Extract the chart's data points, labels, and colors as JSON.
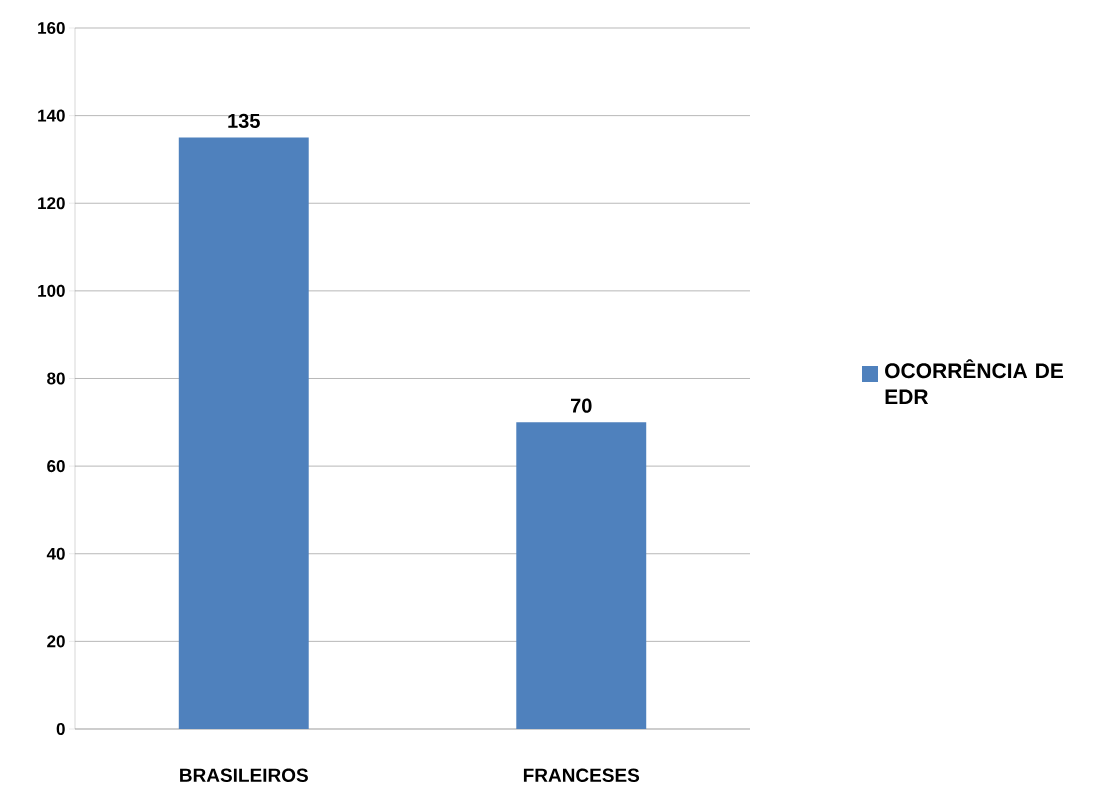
{
  "chart_data": {
    "type": "bar",
    "categories": [
      "BRASILEIROS",
      "FRANCESES"
    ],
    "series": [
      {
        "name": "OCORRÊNCIA DE EDR",
        "color": "#4f81bd",
        "values": [
          135,
          70
        ]
      }
    ],
    "ylim": [
      0,
      160
    ],
    "yticks": [
      0,
      20,
      40,
      60,
      80,
      100,
      120,
      140,
      160
    ],
    "grid": "y",
    "legend": "right",
    "data_labels": true
  }
}
